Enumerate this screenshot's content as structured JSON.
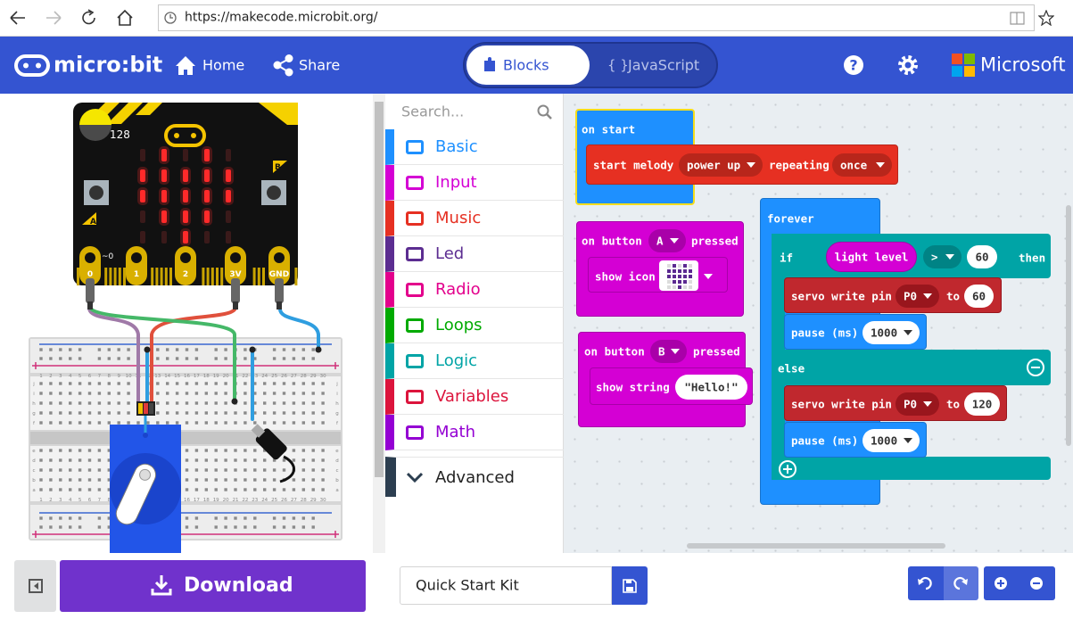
{
  "browser": {
    "url": "https://makecode.microbit.org/"
  },
  "header": {
    "logo": "micro:bit",
    "home": "Home",
    "share": "Share",
    "blocks_tab": "Blocks",
    "javascript_icon": "{ }",
    "javascript_tab": "JavaScript",
    "help": "?",
    "brand": "Microsoft"
  },
  "simulator": {
    "light_level": "128",
    "button_a": "A",
    "button_b": "B",
    "pins": [
      "0",
      "1",
      "2",
      "3V",
      "GND"
    ],
    "pin_marker": "~0",
    "breadboard": {
      "rows": [
        "a",
        "b",
        "c",
        "d",
        "e",
        "f",
        "g",
        "h",
        "i",
        "j"
      ],
      "columns": [
        "1",
        "2",
        "3",
        "4",
        "5",
        "6",
        "7",
        "8",
        "9",
        "10",
        "11",
        "12",
        "13",
        "14",
        "15",
        "16",
        "17",
        "18",
        "19",
        "20",
        "21",
        "22",
        "23",
        "24",
        "25",
        "26",
        "27",
        "28",
        "29",
        "30"
      ]
    }
  },
  "toolbox": {
    "search": "Search...",
    "categories": [
      {
        "name": "Basic",
        "color": "#1e90ff"
      },
      {
        "name": "Input",
        "color": "#d400d4"
      },
      {
        "name": "Music",
        "color": "#e63022"
      },
      {
        "name": "Led",
        "color": "#5c2d91"
      },
      {
        "name": "Radio",
        "color": "#e3008c"
      },
      {
        "name": "Loops",
        "color": "#00aa00"
      },
      {
        "name": "Logic",
        "color": "#00a4a6"
      },
      {
        "name": "Variables",
        "color": "#dc143c"
      },
      {
        "name": "Math",
        "color": "#9400d3"
      }
    ],
    "advanced": "Advanced"
  },
  "workspace": {
    "on_start": {
      "label": "on start",
      "melody": {
        "label": "start melody",
        "melody_name": "power up",
        "repeating": "repeating",
        "repeat_mode": "once"
      }
    },
    "button_a": {
      "label": "on button",
      "button": "A",
      "pressed": "pressed",
      "show_icon": "show icon"
    },
    "button_b": {
      "label": "on button",
      "button": "B",
      "pressed": "pressed",
      "show_string": "show string",
      "text": "\"Hello!\""
    },
    "forever": {
      "label": "forever",
      "if": "if",
      "sensor": "light level",
      "operator": ">",
      "threshold": "60",
      "then": "then",
      "else": "else",
      "then_servo": {
        "label": "servo write pin",
        "pin": "P0",
        "to": "to",
        "angle": "60"
      },
      "then_pause": {
        "label": "pause (ms)",
        "ms": "1000"
      },
      "else_servo": {
        "label": "servo write pin",
        "pin": "P0",
        "to": "to",
        "angle": "120"
      },
      "else_pause": {
        "label": "pause (ms)",
        "ms": "1000"
      }
    }
  },
  "footer": {
    "download": "Download",
    "project_name": "Quick Start Kit"
  }
}
